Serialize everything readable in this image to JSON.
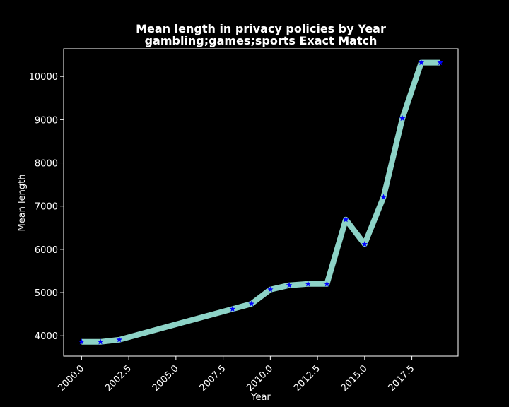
{
  "chart_data": {
    "type": "line",
    "title": "Mean length in privacy policies by Year",
    "subtitle": "gambling;games;sports Exact Match",
    "xlabel": "Year",
    "ylabel": "Mean length",
    "xlim": [
      1999.05,
      2019.95
    ],
    "ylim": [
      3530,
      10640
    ],
    "xticks": [
      2000.0,
      2002.5,
      2005.0,
      2007.5,
      2010.0,
      2012.5,
      2015.0,
      2017.5
    ],
    "xtick_labels": [
      "2000.0",
      "2002.5",
      "2005.0",
      "2007.5",
      "2010.0",
      "2012.5",
      "2015.0",
      "2017.5"
    ],
    "yticks": [
      4000,
      5000,
      6000,
      7000,
      8000,
      9000,
      10000
    ],
    "ytick_labels": [
      "4000",
      "5000",
      "6000",
      "7000",
      "8000",
      "9000",
      "10000"
    ],
    "grid": false,
    "series": [
      {
        "line_color": "#8dd3c7",
        "marker_color": "#0000ff",
        "marker": "star",
        "x": [
          2000,
          2001,
          2002,
          2008,
          2009,
          2010,
          2011,
          2012,
          2013,
          2014,
          2015,
          2016,
          2017,
          2018,
          2019
        ],
        "y": [
          3860,
          3860,
          3910,
          4620,
          4740,
          5070,
          5170,
          5200,
          5200,
          6690,
          6120,
          7210,
          9030,
          10320,
          10320
        ]
      }
    ],
    "colors": {
      "background": "#000000",
      "text": "#ffffff"
    }
  }
}
